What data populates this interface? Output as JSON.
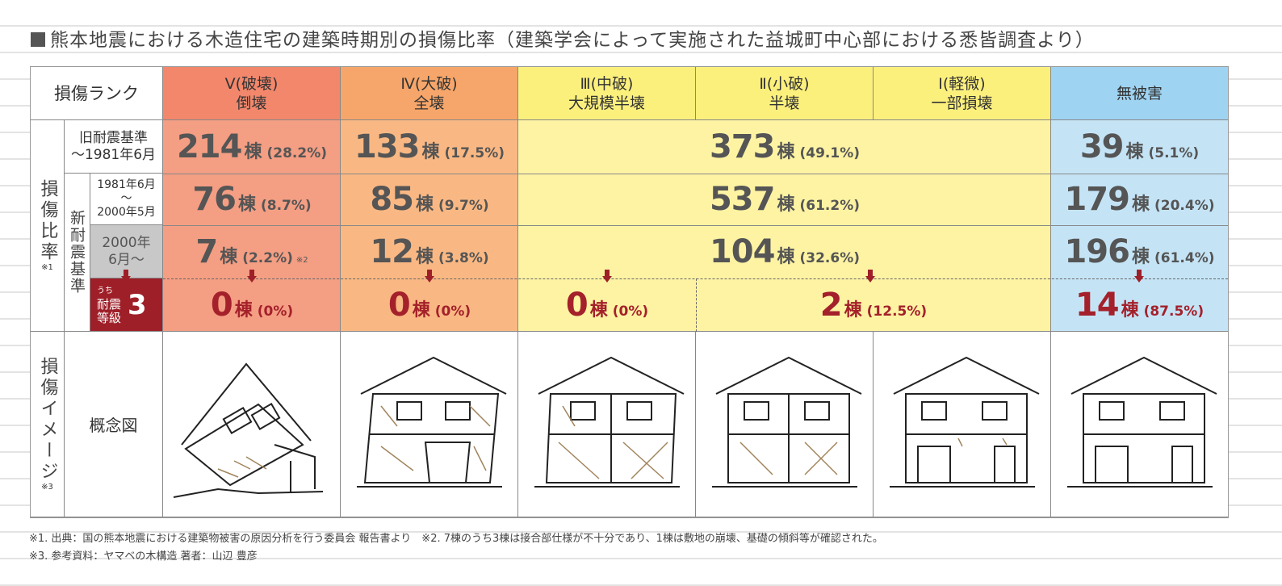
{
  "title": "熊本地震における木造住宅の建築時期別の損傷比率（建築学会によって実施された益城町中心部における悉皆調査より）",
  "chart_data": {
    "type": "table",
    "rank_header": "損傷ランク",
    "columns": [
      {
        "rank": "Ⅴ(破壊)",
        "label": "倒壊"
      },
      {
        "rank": "Ⅳ(大破)",
        "label": "全壊"
      },
      {
        "rank": "Ⅲ(中破)",
        "label": "大規模半壊"
      },
      {
        "rank": "Ⅱ(小破)",
        "label": "半壊"
      },
      {
        "rank": "Ⅰ(軽微)",
        "label": "一部損壊"
      },
      {
        "rank": "",
        "label": "無被害"
      }
    ],
    "row_group_label": "損傷比率",
    "row_group_note": "※1",
    "new_standard_label": "新耐震基準",
    "rows": [
      {
        "label": "旧耐震基準",
        "sublabel": "〜1981年6月",
        "values": [
          {
            "count": "214",
            "pct": "(28.2%)"
          },
          {
            "count": "133",
            "pct": "(17.5%)"
          },
          {
            "count": "373",
            "pct": "(49.1%)"
          },
          {
            "count": "39",
            "pct": "(5.1%)"
          }
        ]
      },
      {
        "label": "1981年6月",
        "sublabel": "〜",
        "sublabel2": "2000年5月",
        "values": [
          {
            "count": "76",
            "pct": "(8.7%)"
          },
          {
            "count": "85",
            "pct": "(9.7%)"
          },
          {
            "count": "537",
            "pct": "(61.2%)"
          },
          {
            "count": "179",
            "pct": "(20.4%)"
          }
        ]
      },
      {
        "label": "2000年",
        "sublabel": "6月〜",
        "values": [
          {
            "count": "7",
            "pct": "(2.2%)",
            "note": "※2"
          },
          {
            "count": "12",
            "pct": "(3.8%)"
          },
          {
            "count": "104",
            "pct": "(32.6%)"
          },
          {
            "count": "196",
            "pct": "(61.4%)"
          }
        ]
      },
      {
        "label_small": "うち",
        "label": "耐震",
        "label2": "等級",
        "grade": "3",
        "values": [
          {
            "count": "0",
            "pct": "(0%)"
          },
          {
            "count": "0",
            "pct": "(0%)"
          },
          {
            "count": "0",
            "pct": "(0%)"
          },
          {
            "count": "2",
            "pct": "(12.5%)"
          },
          {
            "count": "14",
            "pct": "(87.5%)"
          }
        ]
      }
    ],
    "unit": "棟",
    "image_group_label": "損傷イメージ",
    "image_group_note": "※3",
    "image_row_label": "概念図"
  },
  "notes": [
    "※1. 出典：国の熊本地震における建築物被害の原因分析を行う委員会 報告書より　※2. 7棟のうち3棟は接合部仕様が不十分であり、1棟は敷地の崩壊、基礎の傾斜等が確認された。",
    "※3. 参考資料：ヤマベの木構造 著者：山辺 豊彦"
  ],
  "colors": {
    "red": "#f49e83",
    "orange": "#f9b883",
    "yellow": "#fdf3a3",
    "blue": "#c4e4f6",
    "dark_red": "#9e1f28"
  }
}
